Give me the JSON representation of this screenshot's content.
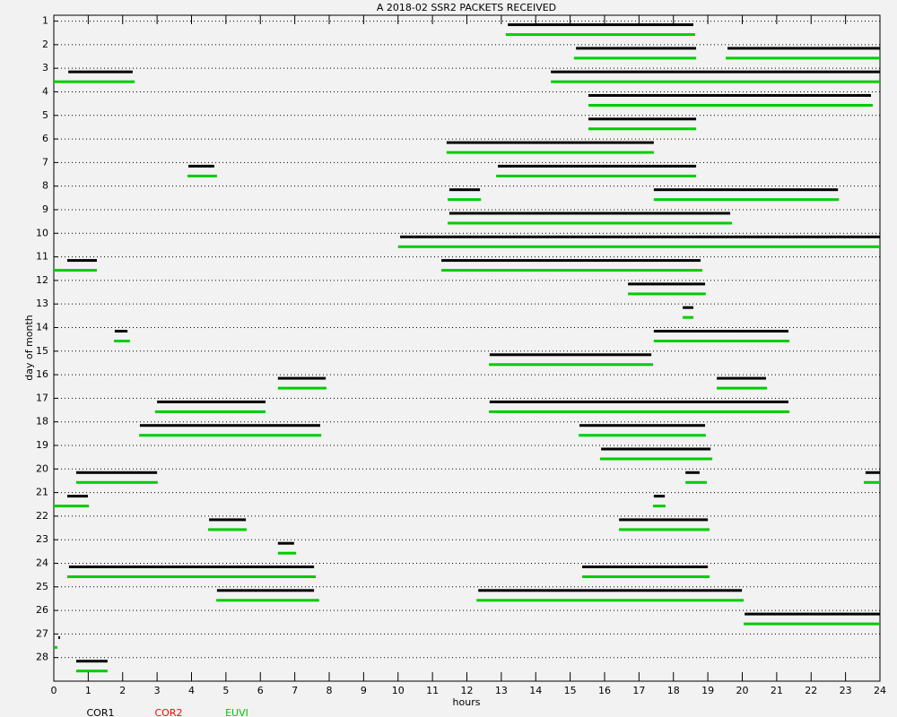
{
  "chart_data": {
    "type": "interval",
    "title": "A  2018-02 SSR2 PACKETS RECEIVED",
    "x_label": "hours",
    "y_label": "day of month",
    "xlim": [
      0,
      24
    ],
    "xticks": [
      0,
      1,
      2,
      3,
      4,
      5,
      6,
      7,
      8,
      9,
      10,
      11,
      12,
      13,
      14,
      15,
      16,
      17,
      18,
      19,
      20,
      21,
      22,
      23,
      24
    ],
    "ylim": [
      0.75,
      29
    ],
    "y_inverted": true,
    "yticks": [
      1,
      2,
      3,
      4,
      5,
      6,
      7,
      8,
      9,
      10,
      11,
      12,
      13,
      14,
      15,
      16,
      17,
      18,
      19,
      20,
      21,
      22,
      23,
      24,
      25,
      26,
      27,
      28
    ],
    "grid": true,
    "series": [
      {
        "name": "COR1",
        "color": "#000000",
        "intervals": [
          [
            1,
            13.19,
            18.58
          ],
          [
            2,
            15.17,
            18.66
          ],
          [
            2,
            19.57,
            24
          ],
          [
            3,
            0.42,
            2.29
          ],
          [
            3,
            14.44,
            24
          ],
          [
            4,
            15.53,
            23.74
          ],
          [
            5,
            15.53,
            18.66
          ],
          [
            6,
            11.41,
            17.43
          ],
          [
            7,
            3.91,
            4.66
          ],
          [
            7,
            12.9,
            18.66
          ],
          [
            8,
            11.49,
            12.38
          ],
          [
            8,
            17.43,
            22.78
          ],
          [
            9,
            11.49,
            19.65
          ],
          [
            10,
            10.06,
            24
          ],
          [
            11,
            0.39,
            1.25
          ],
          [
            11,
            11.26,
            18.79
          ],
          [
            12,
            16.68,
            18.92
          ],
          [
            13,
            18.27,
            18.58
          ],
          [
            14,
            1.77,
            2.14
          ],
          [
            14,
            17.43,
            21.34
          ],
          [
            15,
            12.66,
            17.36
          ],
          [
            16,
            6.51,
            7.9
          ],
          [
            16,
            19.26,
            20.69
          ],
          [
            17,
            3.0,
            6.15
          ],
          [
            17,
            12.66,
            21.34
          ],
          [
            18,
            2.5,
            7.74
          ],
          [
            18,
            15.27,
            18.92
          ],
          [
            19,
            15.9,
            19.08
          ],
          [
            20,
            0.65,
            3.0
          ],
          [
            20,
            18.35,
            18.76
          ],
          [
            20,
            23.58,
            24
          ],
          [
            21,
            0.39,
            0.99
          ],
          [
            21,
            17.43,
            17.75
          ],
          [
            22,
            4.51,
            5.58
          ],
          [
            22,
            16.42,
            19.0
          ],
          [
            23,
            6.51,
            6.98
          ],
          [
            24,
            0.44,
            7.56
          ],
          [
            24,
            15.35,
            19.0
          ],
          [
            25,
            4.74,
            7.56
          ],
          [
            25,
            12.33,
            19.99
          ],
          [
            26,
            20.07,
            24
          ],
          [
            27,
            0.13,
            0.18
          ],
          [
            28,
            0.65,
            1.56
          ]
        ]
      },
      {
        "name": "COR2",
        "color": "#ff0000",
        "intervals": []
      },
      {
        "name": "EUVI",
        "color": "#00cc00",
        "intervals": [
          [
            1,
            13.13,
            18.63
          ],
          [
            2,
            15.11,
            18.66
          ],
          [
            2,
            19.52,
            24
          ],
          [
            3,
            0,
            2.35
          ],
          [
            3,
            14.44,
            24
          ],
          [
            4,
            15.53,
            23.79
          ],
          [
            5,
            15.53,
            18.66
          ],
          [
            6,
            11.41,
            17.43
          ],
          [
            7,
            3.88,
            4.74
          ],
          [
            7,
            12.85,
            18.66
          ],
          [
            8,
            11.44,
            12.41
          ],
          [
            8,
            17.43,
            22.81
          ],
          [
            9,
            11.44,
            19.7
          ],
          [
            10,
            10.0,
            24
          ],
          [
            11,
            0,
            1.25
          ],
          [
            11,
            11.26,
            18.84
          ],
          [
            12,
            16.68,
            18.94
          ],
          [
            13,
            18.27,
            18.58
          ],
          [
            14,
            1.75,
            2.21
          ],
          [
            14,
            17.43,
            21.37
          ],
          [
            15,
            12.64,
            17.41
          ],
          [
            16,
            6.51,
            7.92
          ],
          [
            16,
            19.26,
            20.72
          ],
          [
            17,
            2.94,
            6.15
          ],
          [
            17,
            12.64,
            21.37
          ],
          [
            18,
            2.48,
            7.77
          ],
          [
            18,
            15.25,
            18.94
          ],
          [
            19,
            15.87,
            19.13
          ],
          [
            20,
            0.65,
            3.02
          ],
          [
            20,
            18.35,
            18.97
          ],
          [
            20,
            23.53,
            24
          ],
          [
            21,
            0,
            1.02
          ],
          [
            21,
            17.41,
            17.77
          ],
          [
            22,
            4.48,
            5.6
          ],
          [
            22,
            16.42,
            19.05
          ],
          [
            23,
            6.51,
            7.04
          ],
          [
            24,
            0.39,
            7.61
          ],
          [
            24,
            15.35,
            19.05
          ],
          [
            25,
            4.72,
            7.71
          ],
          [
            25,
            12.28,
            20.04
          ],
          [
            26,
            20.04,
            24
          ],
          [
            27,
            0,
            0.1
          ],
          [
            28,
            0.65,
            1.56
          ]
        ]
      }
    ]
  }
}
